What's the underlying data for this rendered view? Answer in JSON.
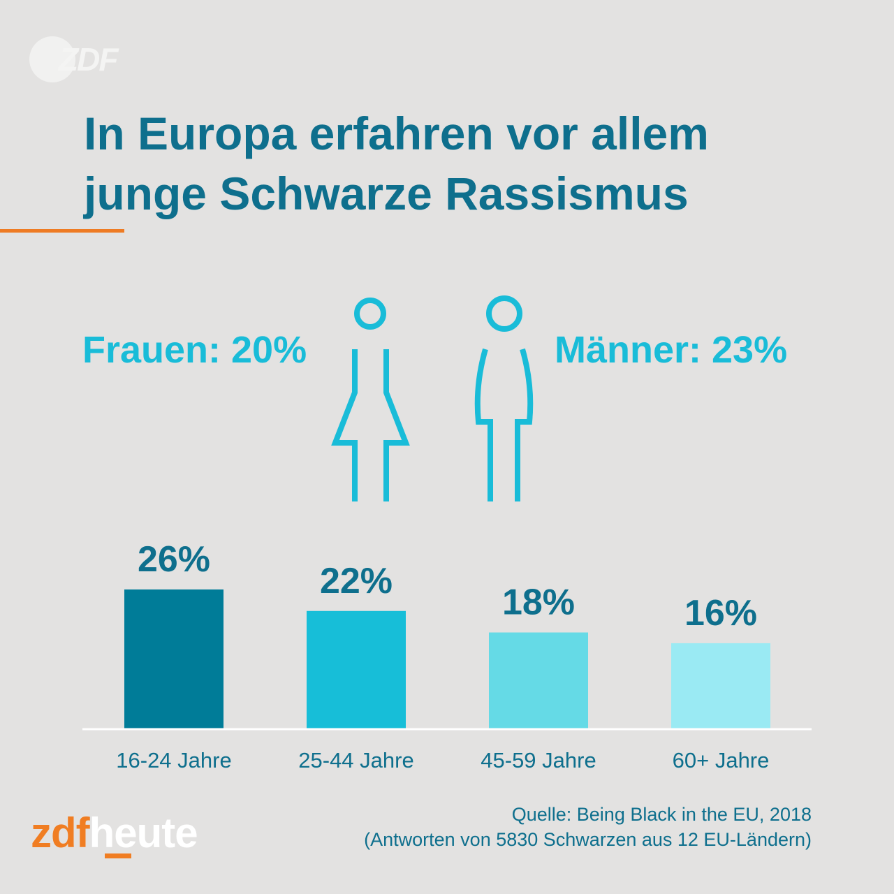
{
  "logo": {
    "text": "ZDF"
  },
  "title": {
    "line1": "In Europa erfahren vor allem",
    "line2": "junge Schwarze Rassismus"
  },
  "gender": {
    "women": "Frauen: 20%",
    "men": "Männer: 23%"
  },
  "colors": {
    "title": "#0e6f8d",
    "accent": "#ee7b23",
    "figure": "#19bcd8",
    "bars": [
      "#007c98",
      "#17bed8",
      "#65dae6",
      "#9aeaf3"
    ]
  },
  "chart_data": {
    "type": "bar",
    "title": "",
    "categories": [
      "16-24 Jahre",
      "25-44 Jahre",
      "45-59 Jahre",
      "60+ Jahre"
    ],
    "values": [
      26,
      22,
      18,
      16
    ],
    "value_labels": [
      "26%",
      "22%",
      "18%",
      "16%"
    ],
    "xlabel": "",
    "ylabel": "",
    "ylim": [
      0,
      26
    ],
    "grid": false
  },
  "brand": {
    "zdf": "zdf",
    "heute": "heute"
  },
  "source": {
    "line1": "Quelle: Being Black in the EU, 2018",
    "line2": "(Antworten von 5830 Schwarzen aus 12 EU-Ländern)"
  }
}
